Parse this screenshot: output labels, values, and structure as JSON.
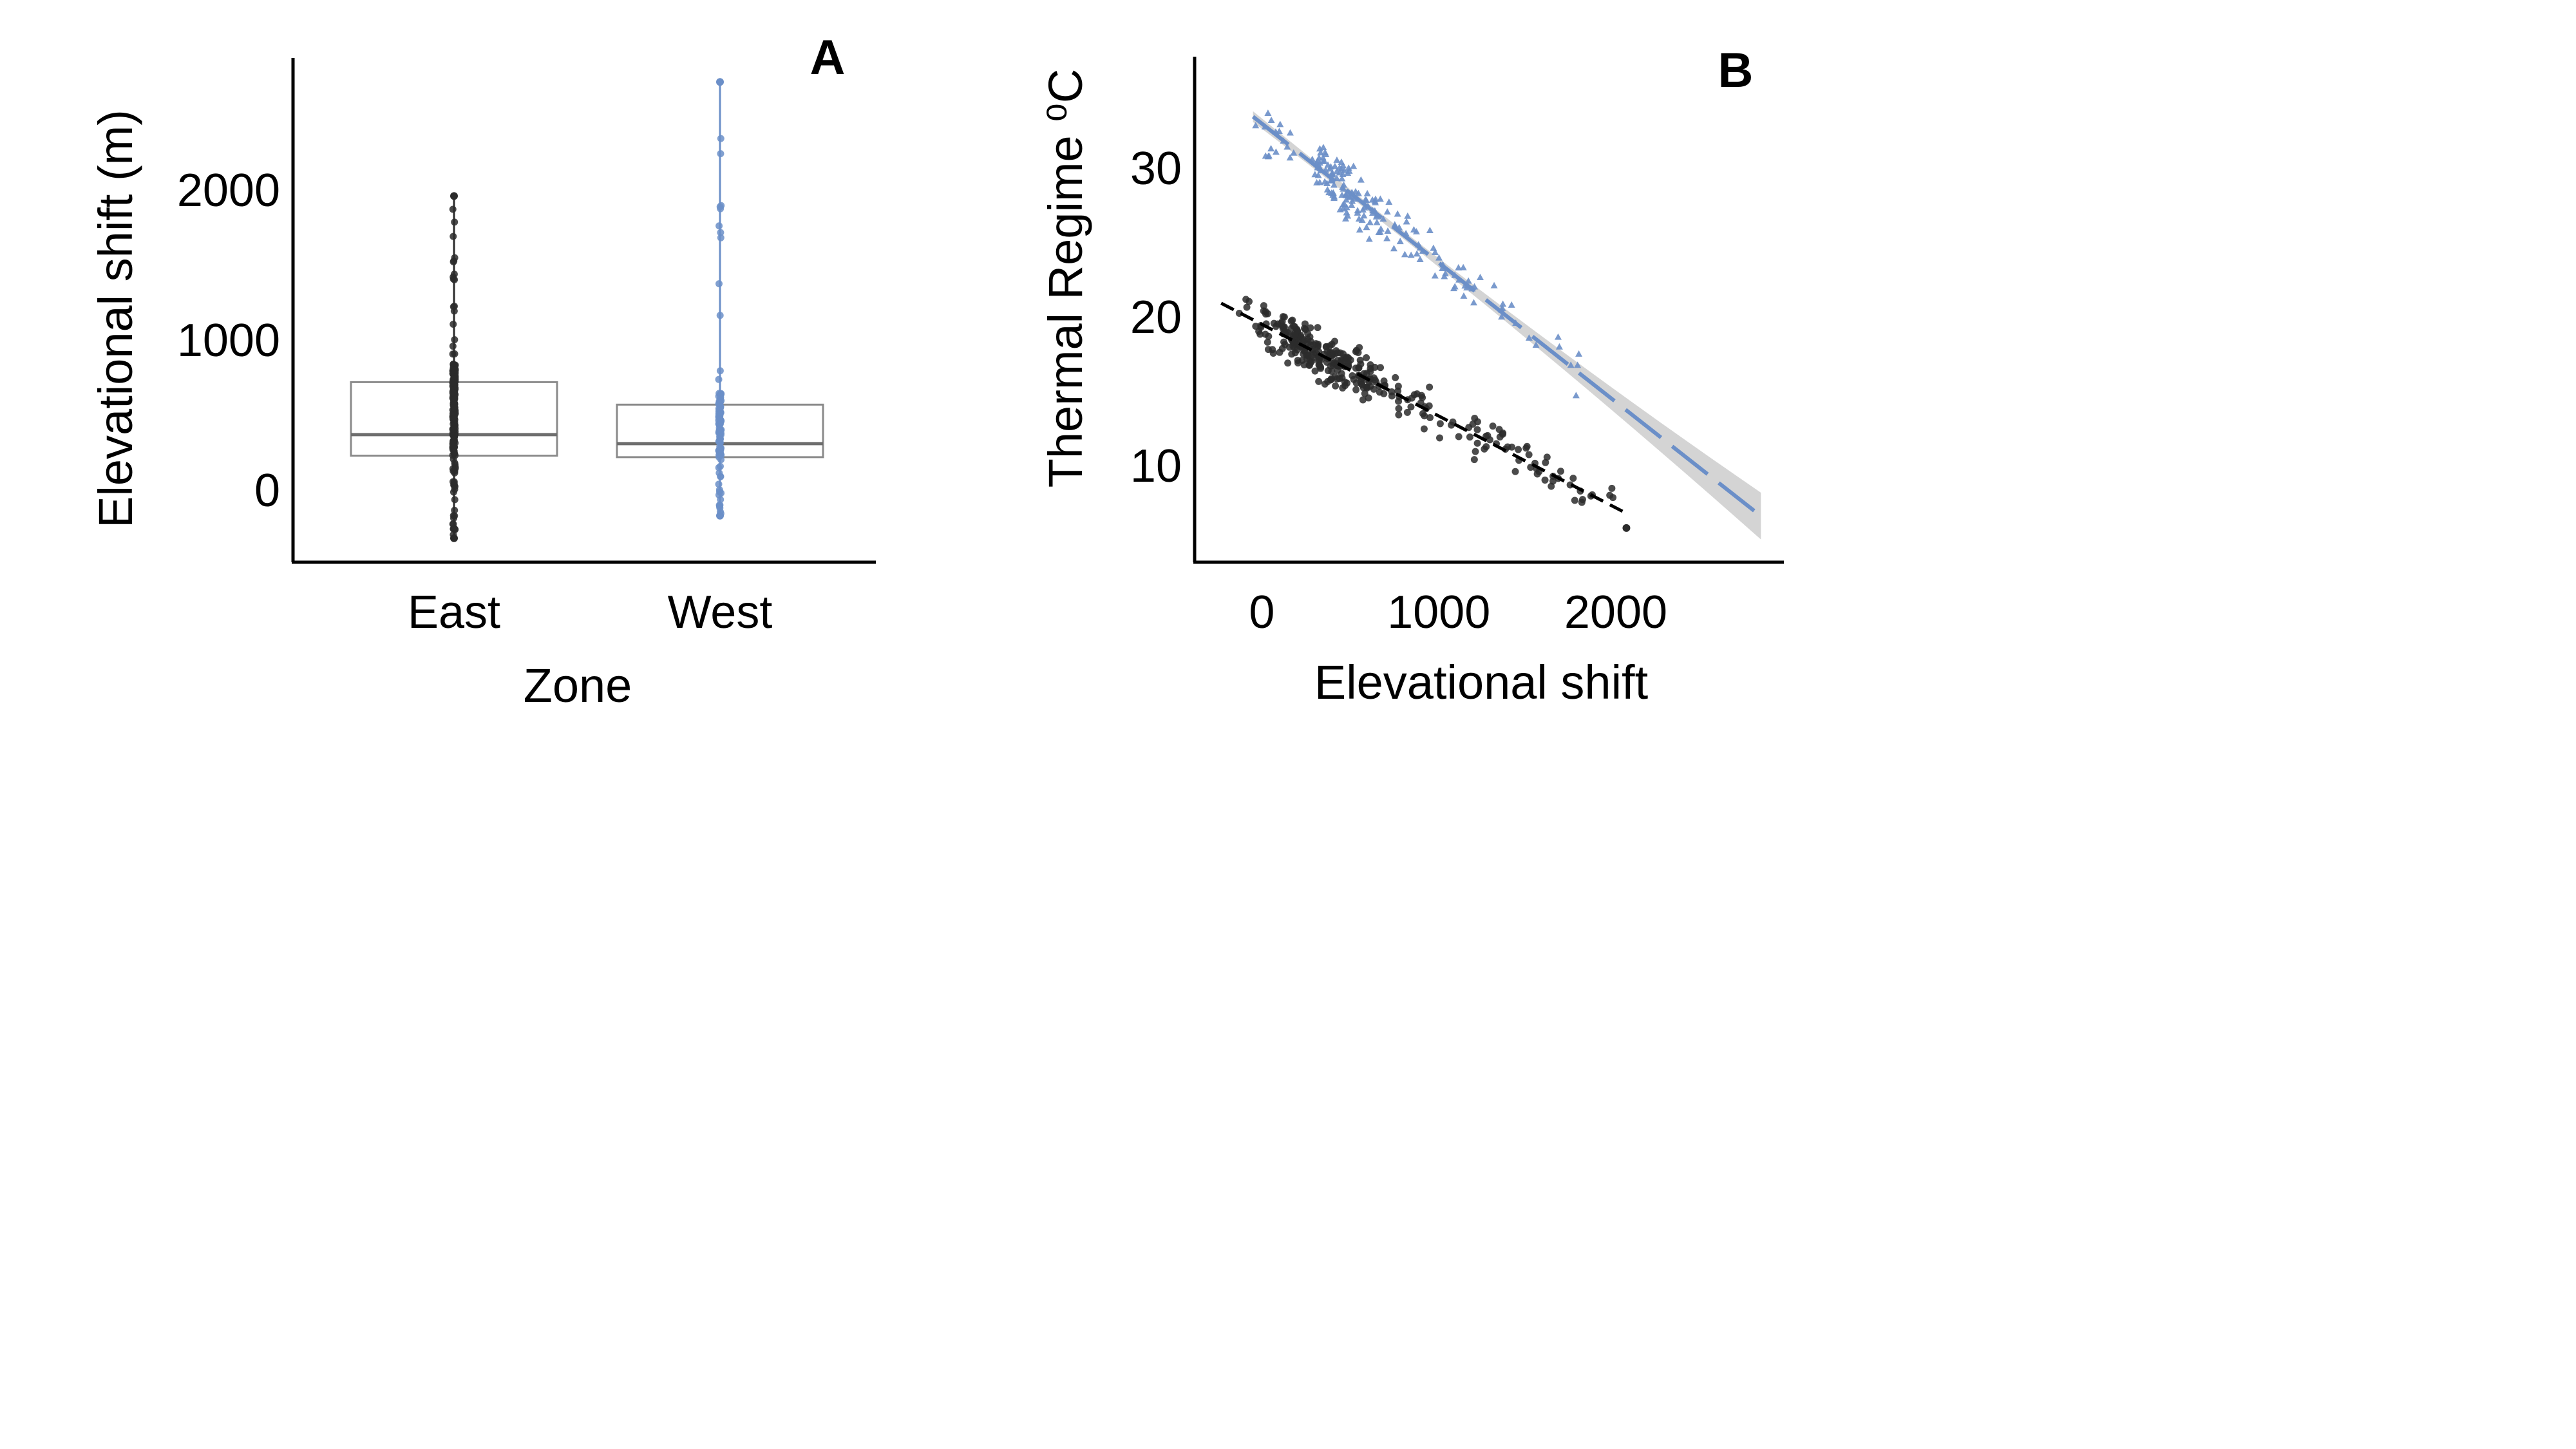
{
  "colors": {
    "east": "#2b2b2b",
    "west": "#6b8fc8",
    "axis": "#000000",
    "box": "#8a8a8a",
    "band": "#cfcfcf"
  },
  "chart_data": [
    {
      "type": "box",
      "panel_label": "A",
      "xlabel": "Zone",
      "ylabel": "Elevational shift (m)",
      "categories": [
        "East",
        "West"
      ],
      "ylim": [
        -480,
        2880
      ],
      "yticks": [
        0,
        1000,
        2000
      ],
      "ytick_labels": [
        "0",
        "1000",
        "2000"
      ],
      "grid": false,
      "boxes": [
        {
          "name": "East",
          "q1": 230,
          "median": 370,
          "q3": 720,
          "min": -320,
          "max": 1960
        },
        {
          "name": "West",
          "q1": 220,
          "median": 310,
          "q3": 570,
          "min": -170,
          "max": 2720
        }
      ]
    },
    {
      "type": "scatter",
      "panel_label": "B",
      "xlabel": "Elevational shift",
      "ylabel": "Thermal Regime ⁰C",
      "xlim": [
        -380,
        2950
      ],
      "ylim": [
        3.5,
        37.5
      ],
      "xticks": [
        0,
        1000,
        2000
      ],
      "xtick_labels": [
        "0",
        "1000",
        "2000"
      ],
      "yticks": [
        10,
        20,
        30
      ],
      "ytick_labels": [
        "10",
        "20",
        "30"
      ],
      "grid": false,
      "series": [
        {
          "marker": "triangle",
          "fit": {
            "slope": -0.00936,
            "intercept": 33.0,
            "x_range": [
              -50,
              2820
            ],
            "line": "long-dash",
            "ci_band": true
          }
        },
        {
          "marker": "circle",
          "fit": {
            "slope": -0.00617,
            "intercept": 19.5,
            "x_range": [
              -230,
              2060
            ],
            "line": "dash",
            "ci_band": false
          }
        }
      ]
    }
  ]
}
